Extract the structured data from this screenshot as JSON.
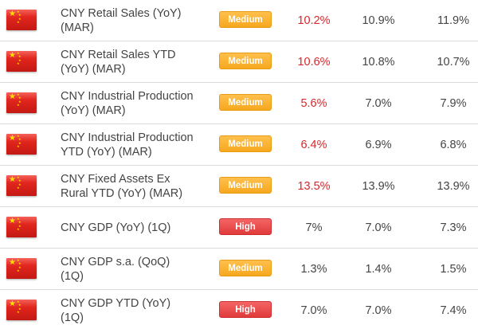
{
  "rows": [
    {
      "event": [
        "CNY Retail Sales (YoY)",
        "(MAR)"
      ],
      "impact": "Medium",
      "impact_level": "medium",
      "actual": "10.2%",
      "actual_color": "#d9262b",
      "forecast": "10.9%",
      "previous": "11.9%"
    },
    {
      "event": [
        "CNY Retail Sales YTD",
        "(YoY) (MAR)"
      ],
      "impact": "Medium",
      "impact_level": "medium",
      "actual": "10.6%",
      "actual_color": "#d9262b",
      "forecast": "10.8%",
      "previous": "10.7%"
    },
    {
      "event": [
        "CNY Industrial Production",
        "(YoY) (MAR)"
      ],
      "impact": "Medium",
      "impact_level": "medium",
      "actual": "5.6%",
      "actual_color": "#d9262b",
      "forecast": "7.0%",
      "previous": "7.9%"
    },
    {
      "event": [
        "CNY Industrial Production",
        "YTD (YoY) (MAR)"
      ],
      "impact": "Medium",
      "impact_level": "medium",
      "actual": "6.4%",
      "actual_color": "#d9262b",
      "forecast": "6.9%",
      "previous": "6.8%"
    },
    {
      "event": [
        "CNY Fixed Assets Ex",
        "Rural YTD (YoY) (MAR)"
      ],
      "impact": "Medium",
      "impact_level": "medium",
      "actual": "13.5%",
      "actual_color": "#d9262b",
      "forecast": "13.9%",
      "previous": "13.9%"
    },
    {
      "event": [
        "CNY GDP (YoY) (1Q)"
      ],
      "impact": "High",
      "impact_level": "high",
      "actual": "7%",
      "actual_color": "#444444",
      "forecast": "7.0%",
      "previous": "7.3%"
    },
    {
      "event": [
        "CNY GDP s.a. (QoQ)",
        "(1Q)"
      ],
      "impact": "Medium",
      "impact_level": "medium",
      "actual": "1.3%",
      "actual_color": "#444444",
      "forecast": "1.4%",
      "previous": "1.5%"
    },
    {
      "event": [
        "CNY GDP YTD (YoY)",
        "(1Q)"
      ],
      "impact": "High",
      "impact_level": "high",
      "actual": "7.0%",
      "actual_color": "#444444",
      "forecast": "7.0%",
      "previous": "7.4%"
    }
  ],
  "flag_icon": "china-flag-icon",
  "colors": {
    "medium": "#f6a81f",
    "high": "#e03a3a",
    "negative_actual": "#d9262b",
    "text": "#444444"
  }
}
